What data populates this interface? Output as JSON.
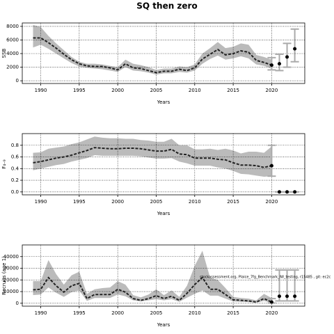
{
  "title": "SQ then zero",
  "chart_data": [
    {
      "type": "line",
      "ylabel": "SSB",
      "xlabel": "Years",
      "x": [
        1989,
        1990,
        1991,
        1992,
        1993,
        1994,
        1995,
        1996,
        1997,
        1998,
        1999,
        2000,
        2001,
        2002,
        2003,
        2004,
        2005,
        2006,
        2007,
        2008,
        2009,
        2010,
        2011,
        2012,
        2013,
        2014,
        2015,
        2016,
        2017,
        2018,
        2019,
        2020
      ],
      "values": [
        6300,
        6300,
        5600,
        4800,
        3900,
        3100,
        2500,
        2200,
        2100,
        2100,
        1900,
        1600,
        2500,
        1900,
        1800,
        1500,
        1200,
        1400,
        1400,
        1700,
        1500,
        1900,
        3200,
        3900,
        4600,
        3800,
        4000,
        4400,
        4200,
        3000,
        2700,
        2300
      ],
      "upper": [
        8200,
        7900,
        6600,
        5500,
        4500,
        3500,
        2800,
        2500,
        2500,
        2400,
        2200,
        2000,
        3100,
        2500,
        2300,
        2000,
        1600,
        1800,
        1800,
        2100,
        2000,
        2400,
        4000,
        4800,
        5700,
        4800,
        5000,
        5500,
        5300,
        3800,
        3500,
        3100
      ],
      "lower": [
        4900,
        5300,
        4700,
        4000,
        3300,
        2600,
        2100,
        1900,
        1800,
        1700,
        1500,
        1300,
        2000,
        1500,
        1400,
        1200,
        900,
        1100,
        1100,
        1300,
        1200,
        1500,
        2500,
        3200,
        3700,
        3100,
        3300,
        3600,
        3300,
        2400,
        2200,
        1800
      ],
      "proj_x": [
        2020,
        2021,
        2022,
        2023
      ],
      "proj_values": [
        2300,
        2500,
        3500,
        4700
      ],
      "proj_lower": [
        1600,
        1500,
        2000,
        2800
      ],
      "proj_upper": [
        3400,
        3900,
        5500,
        7600
      ],
      "color": "#222222",
      "band_color": "#bbbbbb",
      "proj_bar_color": "#aaaaaa",
      "xlim": [
        1987.6,
        2024.3
      ],
      "xticks": [
        1990,
        1995,
        2000,
        2005,
        2010,
        2015,
        2020
      ],
      "ylim": [
        -400,
        8500
      ],
      "yticks": [
        0,
        2000,
        4000,
        6000,
        8000
      ],
      "grid": true
    },
    {
      "type": "line",
      "ylabel": "F₄₋₉",
      "xlabel": "Years",
      "x": [
        1989,
        1990,
        1991,
        1992,
        1993,
        1994,
        1995,
        1996,
        1997,
        1998,
        1999,
        2000,
        2001,
        2002,
        2003,
        2004,
        2005,
        2006,
        2007,
        2008,
        2009,
        2010,
        2011,
        2012,
        2013,
        2014,
        2015,
        2016,
        2017,
        2018,
        2019,
        2020
      ],
      "values": [
        0.5,
        0.52,
        0.55,
        0.58,
        0.6,
        0.63,
        0.67,
        0.71,
        0.76,
        0.75,
        0.74,
        0.74,
        0.75,
        0.75,
        0.74,
        0.72,
        0.7,
        0.7,
        0.73,
        0.65,
        0.64,
        0.58,
        0.58,
        0.58,
        0.56,
        0.55,
        0.5,
        0.46,
        0.46,
        0.45,
        0.42,
        0.45
      ],
      "upper": [
        0.67,
        0.68,
        0.74,
        0.76,
        0.78,
        0.82,
        0.85,
        0.9,
        0.95,
        0.93,
        0.92,
        0.92,
        0.91,
        0.91,
        0.89,
        0.88,
        0.86,
        0.86,
        0.91,
        0.8,
        0.8,
        0.73,
        0.73,
        0.74,
        0.72,
        0.74,
        0.71,
        0.66,
        0.69,
        0.69,
        0.67,
        0.78
      ],
      "lower": [
        0.37,
        0.4,
        0.43,
        0.46,
        0.48,
        0.52,
        0.55,
        0.58,
        0.63,
        0.62,
        0.62,
        0.62,
        0.62,
        0.62,
        0.61,
        0.59,
        0.57,
        0.57,
        0.58,
        0.52,
        0.49,
        0.45,
        0.45,
        0.45,
        0.42,
        0.4,
        0.36,
        0.31,
        0.3,
        0.28,
        0.26,
        0.27
      ],
      "proj_x": [
        2020,
        2021,
        2022,
        2023
      ],
      "proj_values": [
        0.45,
        0,
        0,
        0
      ],
      "proj_lower": [
        0.27,
        0,
        0,
        0
      ],
      "proj_upper": [
        0.8,
        0,
        0,
        0
      ],
      "color": "#222222",
      "band_color": "#bbbbbb",
      "proj_bar_color": "#aaaaaa",
      "xlim": [
        1987.6,
        2024.3
      ],
      "xticks": [
        1990,
        1995,
        2000,
        2005,
        2010,
        2015,
        2020
      ],
      "ylim": [
        -0.05,
        1.0
      ],
      "yticks": [
        {
          "value": 0,
          "label": "0.0"
        },
        0.2,
        0.4,
        0.6,
        0.8
      ],
      "grid": true
    },
    {
      "type": "line",
      "ylabel": "Recruits (age 1)",
      "xlabel": "Years",
      "annotation": "stockassessment.org, Plaice_7fg_Benchmark_IW_testing, r15485 , git: ec2c",
      "x": [
        1989,
        1990,
        1991,
        1992,
        1993,
        1994,
        1995,
        1996,
        1997,
        1998,
        1999,
        2000,
        2001,
        2002,
        2003,
        2004,
        2005,
        2006,
        2007,
        2008,
        2009,
        2010,
        2011,
        2012,
        2013,
        2014,
        2015,
        2016,
        2017,
        2018,
        2019,
        2020
      ],
      "values": [
        11500,
        12000,
        22000,
        15000,
        9500,
        15000,
        17000,
        4000,
        7500,
        7500,
        7500,
        12000,
        9500,
        4000,
        2500,
        4000,
        6500,
        4000,
        6000,
        2500,
        8500,
        16000,
        22000,
        12000,
        12000,
        7500,
        3000,
        2500,
        2000,
        1000,
        4000,
        1000
      ],
      "upper": [
        19000,
        19000,
        37000,
        25000,
        16000,
        24000,
        27000,
        8000,
        12000,
        13000,
        13500,
        19000,
        16000,
        7000,
        5000,
        7500,
        12000,
        7000,
        11000,
        5500,
        15000,
        32000,
        45000,
        22000,
        20000,
        13000,
        5500,
        4500,
        4000,
        2500,
        8000,
        4500
      ],
      "lower": [
        7000,
        7500,
        13500,
        9000,
        5500,
        9500,
        11000,
        2000,
        4500,
        4500,
        4500,
        7500,
        6000,
        2500,
        1500,
        2500,
        3500,
        2500,
        3500,
        1200,
        4800,
        8000,
        11000,
        6500,
        6500,
        4000,
        1500,
        1200,
        1000,
        500,
        2000,
        200
      ],
      "proj_x": [
        2020,
        2021,
        2022,
        2023
      ],
      "proj_values": [
        1000,
        6000,
        6000,
        6000
      ],
      "proj_lower": [
        200,
        2000,
        2000,
        2000
      ],
      "proj_upper": [
        4000,
        28500,
        28500,
        28500
      ],
      "color": "#222222",
      "band_color": "#bbbbbb",
      "proj_bar_color": "#aaaaaa",
      "xlim": [
        1987.6,
        2024.3
      ],
      "xticks": [
        1990,
        1995,
        2000,
        2005,
        2010,
        2015,
        2020
      ],
      "ylim": [
        -2500,
        50000
      ],
      "yticks": [
        0,
        10000,
        20000,
        30000,
        40000
      ],
      "grid": true
    }
  ]
}
